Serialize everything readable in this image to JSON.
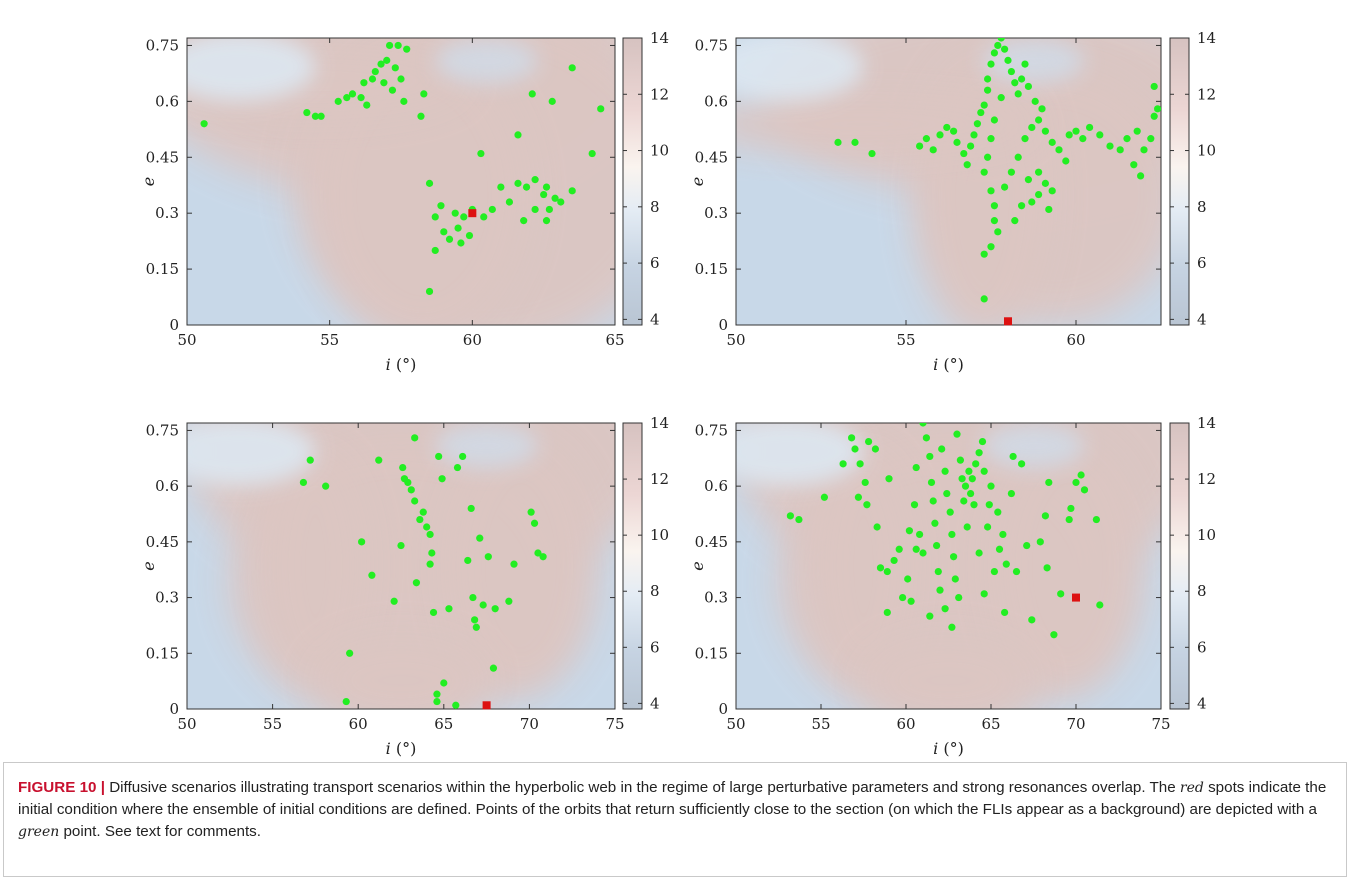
{
  "figure": {
    "colorbar": {
      "ticks": [
        "14",
        "12",
        "10",
        "8",
        "6",
        "4"
      ],
      "range": [
        3.8,
        14
      ],
      "colors": [
        "#b9c5d3",
        "#c6d3e2",
        "#e4ecf4",
        "#faf4ef",
        "#ecd6d4",
        "#d6c2c0"
      ]
    },
    "palette": {
      "green": "#22ee22",
      "red": "#dd1111",
      "bg_low": "#c8d8e8",
      "bg_high": "#dcc6c2"
    }
  },
  "chart_data": [
    {
      "type": "scatter",
      "title": "",
      "xlabel": "i (°)",
      "xlabel_var": "i",
      "xlabel_unit": "(°)",
      "ylabel": "e",
      "xlim": [
        50,
        65
      ],
      "ylim": [
        0,
        0.77
      ],
      "xticks": [
        "50",
        "55",
        "60",
        "65"
      ],
      "yticks": [
        "0",
        "0.15",
        "0.3",
        "0.45",
        "0.6",
        "0.75"
      ],
      "background": "FLI map",
      "initial_condition": [
        60.0,
        0.3
      ],
      "green_points": [
        [
          50.6,
          0.54
        ],
        [
          54.2,
          0.57
        ],
        [
          54.5,
          0.56
        ],
        [
          54.7,
          0.56
        ],
        [
          55.3,
          0.6
        ],
        [
          55.6,
          0.61
        ],
        [
          55.8,
          0.62
        ],
        [
          56.1,
          0.61
        ],
        [
          56.3,
          0.59
        ],
        [
          56.2,
          0.65
        ],
        [
          56.5,
          0.66
        ],
        [
          56.6,
          0.68
        ],
        [
          56.9,
          0.65
        ],
        [
          56.8,
          0.7
        ],
        [
          57.0,
          0.71
        ],
        [
          57.3,
          0.69
        ],
        [
          57.5,
          0.66
        ],
        [
          57.1,
          0.75
        ],
        [
          57.4,
          0.75
        ],
        [
          57.7,
          0.74
        ],
        [
          57.2,
          0.63
        ],
        [
          57.6,
          0.6
        ],
        [
          58.3,
          0.62
        ],
        [
          58.2,
          0.56
        ],
        [
          60.3,
          0.46
        ],
        [
          61.6,
          0.51
        ],
        [
          62.1,
          0.62
        ],
        [
          63.5,
          0.69
        ],
        [
          62.8,
          0.6
        ],
        [
          64.5,
          0.58
        ],
        [
          64.2,
          0.46
        ],
        [
          58.5,
          0.38
        ],
        [
          58.7,
          0.29
        ],
        [
          58.7,
          0.2
        ],
        [
          58.5,
          0.09
        ],
        [
          58.9,
          0.32
        ],
        [
          59.0,
          0.25
        ],
        [
          59.2,
          0.23
        ],
        [
          59.4,
          0.3
        ],
        [
          59.5,
          0.26
        ],
        [
          59.7,
          0.29
        ],
        [
          59.6,
          0.22
        ],
        [
          59.9,
          0.24
        ],
        [
          60.0,
          0.31
        ],
        [
          60.4,
          0.29
        ],
        [
          60.7,
          0.31
        ],
        [
          61.0,
          0.37
        ],
        [
          61.3,
          0.33
        ],
        [
          61.6,
          0.38
        ],
        [
          61.9,
          0.37
        ],
        [
          62.2,
          0.39
        ],
        [
          62.5,
          0.35
        ],
        [
          62.6,
          0.37
        ],
        [
          62.9,
          0.34
        ],
        [
          62.7,
          0.31
        ],
        [
          63.1,
          0.33
        ],
        [
          62.2,
          0.31
        ],
        [
          61.8,
          0.28
        ],
        [
          62.6,
          0.28
        ],
        [
          63.5,
          0.36
        ]
      ]
    },
    {
      "type": "scatter",
      "title": "",
      "xlabel": "i (°)",
      "xlabel_var": "i",
      "xlabel_unit": "(°)",
      "ylabel": "e",
      "xlim": [
        50,
        62.5
      ],
      "ylim": [
        0,
        0.77
      ],
      "xticks": [
        "50",
        "55",
        "60"
      ],
      "yticks": [
        "0",
        "0.15",
        "0.3",
        "0.45",
        "0.6",
        "0.75"
      ],
      "background": "FLI map",
      "initial_condition": [
        58.0,
        0.01
      ],
      "green_points": [
        [
          53.0,
          0.49
        ],
        [
          53.5,
          0.49
        ],
        [
          54.0,
          0.46
        ],
        [
          55.4,
          0.48
        ],
        [
          55.6,
          0.5
        ],
        [
          55.8,
          0.47
        ],
        [
          56.0,
          0.51
        ],
        [
          56.2,
          0.53
        ],
        [
          56.4,
          0.52
        ],
        [
          56.5,
          0.49
        ],
        [
          56.7,
          0.46
        ],
        [
          56.8,
          0.43
        ],
        [
          56.9,
          0.48
        ],
        [
          57.0,
          0.51
        ],
        [
          57.1,
          0.54
        ],
        [
          57.2,
          0.57
        ],
        [
          57.3,
          0.59
        ],
        [
          57.4,
          0.63
        ],
        [
          57.4,
          0.66
        ],
        [
          57.5,
          0.7
        ],
        [
          57.6,
          0.73
        ],
        [
          57.7,
          0.75
        ],
        [
          57.8,
          0.77
        ],
        [
          57.9,
          0.74
        ],
        [
          58.0,
          0.71
        ],
        [
          58.1,
          0.68
        ],
        [
          58.2,
          0.65
        ],
        [
          58.3,
          0.62
        ],
        [
          58.4,
          0.66
        ],
        [
          58.5,
          0.7
        ],
        [
          58.6,
          0.64
        ],
        [
          57.8,
          0.61
        ],
        [
          57.6,
          0.55
        ],
        [
          57.5,
          0.5
        ],
        [
          57.4,
          0.45
        ],
        [
          57.3,
          0.41
        ],
        [
          57.5,
          0.36
        ],
        [
          57.6,
          0.32
        ],
        [
          57.6,
          0.28
        ],
        [
          57.7,
          0.25
        ],
        [
          57.5,
          0.21
        ],
        [
          57.3,
          0.19
        ],
        [
          57.3,
          0.07
        ],
        [
          57.9,
          0.37
        ],
        [
          58.1,
          0.41
        ],
        [
          58.3,
          0.45
        ],
        [
          58.5,
          0.5
        ],
        [
          58.7,
          0.53
        ],
        [
          58.9,
          0.55
        ],
        [
          59.1,
          0.52
        ],
        [
          59.3,
          0.49
        ],
        [
          59.5,
          0.47
        ],
        [
          59.7,
          0.44
        ],
        [
          59.8,
          0.51
        ],
        [
          60.0,
          0.52
        ],
        [
          60.2,
          0.5
        ],
        [
          60.4,
          0.53
        ],
        [
          60.7,
          0.51
        ],
        [
          61.0,
          0.48
        ],
        [
          61.3,
          0.47
        ],
        [
          61.5,
          0.5
        ],
        [
          61.8,
          0.52
        ],
        [
          62.0,
          0.47
        ],
        [
          61.7,
          0.43
        ],
        [
          61.9,
          0.4
        ],
        [
          62.2,
          0.5
        ],
        [
          62.3,
          0.56
        ],
        [
          62.3,
          0.64
        ],
        [
          62.4,
          0.58
        ],
        [
          58.4,
          0.32
        ],
        [
          58.7,
          0.33
        ],
        [
          58.9,
          0.35
        ],
        [
          59.1,
          0.38
        ],
        [
          59.3,
          0.36
        ],
        [
          59.2,
          0.31
        ],
        [
          58.9,
          0.41
        ],
        [
          58.6,
          0.39
        ],
        [
          58.2,
          0.28
        ],
        [
          59.0,
          0.58
        ],
        [
          58.8,
          0.6
        ]
      ]
    },
    {
      "type": "scatter",
      "title": "",
      "xlabel": "i (°)",
      "xlabel_var": "i",
      "xlabel_unit": "(°)",
      "ylabel": "e",
      "xlim": [
        50,
        75
      ],
      "ylim": [
        0,
        0.77
      ],
      "xticks": [
        "50",
        "55",
        "60",
        "65",
        "70",
        "75"
      ],
      "yticks": [
        "0",
        "0.15",
        "0.3",
        "0.45",
        "0.6",
        "0.75"
      ],
      "background": "FLI map",
      "initial_condition": [
        67.5,
        0.01
      ],
      "green_points": [
        [
          56.8,
          0.61
        ],
        [
          57.2,
          0.67
        ],
        [
          58.1,
          0.6
        ],
        [
          60.2,
          0.45
        ],
        [
          60.8,
          0.36
        ],
        [
          61.2,
          0.67
        ],
        [
          62.1,
          0.29
        ],
        [
          62.5,
          0.44
        ],
        [
          62.6,
          0.65
        ],
        [
          62.7,
          0.62
        ],
        [
          62.9,
          0.61
        ],
        [
          63.1,
          0.59
        ],
        [
          63.3,
          0.56
        ],
        [
          63.4,
          0.34
        ],
        [
          63.3,
          0.73
        ],
        [
          63.6,
          0.51
        ],
        [
          63.8,
          0.53
        ],
        [
          64.0,
          0.49
        ],
        [
          64.2,
          0.47
        ],
        [
          64.3,
          0.42
        ],
        [
          64.2,
          0.39
        ],
        [
          64.4,
          0.26
        ],
        [
          64.7,
          0.68
        ],
        [
          64.9,
          0.62
        ],
        [
          65.0,
          0.07
        ],
        [
          65.3,
          0.27
        ],
        [
          65.8,
          0.65
        ],
        [
          66.1,
          0.68
        ],
        [
          66.4,
          0.4
        ],
        [
          66.6,
          0.54
        ],
        [
          66.7,
          0.3
        ],
        [
          66.8,
          0.24
        ],
        [
          66.9,
          0.22
        ],
        [
          67.1,
          0.46
        ],
        [
          67.3,
          0.28
        ],
        [
          67.6,
          0.41
        ],
        [
          67.9,
          0.11
        ],
        [
          68.0,
          0.27
        ],
        [
          68.8,
          0.29
        ],
        [
          69.1,
          0.39
        ],
        [
          70.1,
          0.53
        ],
        [
          70.3,
          0.5
        ],
        [
          70.5,
          0.42
        ],
        [
          70.8,
          0.41
        ],
        [
          64.6,
          0.02
        ],
        [
          59.5,
          0.15
        ],
        [
          59.3,
          0.02
        ],
        [
          65.7,
          0.01
        ],
        [
          64.6,
          0.04
        ]
      ]
    },
    {
      "type": "scatter",
      "title": "",
      "xlabel": "i (°)",
      "xlabel_var": "i",
      "xlabel_unit": "(°)",
      "ylabel": "e",
      "xlim": [
        50,
        75
      ],
      "ylim": [
        0,
        0.77
      ],
      "xticks": [
        "50",
        "55",
        "60",
        "65",
        "70",
        "75"
      ],
      "yticks": [
        "0",
        "0.15",
        "0.3",
        "0.45",
        "0.6",
        "0.75"
      ],
      "background": "FLI map",
      "initial_condition": [
        70.0,
        0.3
      ],
      "green_points": [
        [
          53.2,
          0.52
        ],
        [
          53.7,
          0.51
        ],
        [
          55.2,
          0.57
        ],
        [
          56.3,
          0.66
        ],
        [
          56.8,
          0.73
        ],
        [
          57.0,
          0.7
        ],
        [
          57.3,
          0.66
        ],
        [
          57.2,
          0.57
        ],
        [
          57.6,
          0.61
        ],
        [
          57.7,
          0.55
        ],
        [
          58.3,
          0.49
        ],
        [
          58.5,
          0.38
        ],
        [
          58.9,
          0.37
        ],
        [
          58.9,
          0.26
        ],
        [
          59.3,
          0.4
        ],
        [
          59.6,
          0.43
        ],
        [
          59.8,
          0.3
        ],
        [
          60.1,
          0.35
        ],
        [
          60.2,
          0.48
        ],
        [
          60.3,
          0.29
        ],
        [
          60.5,
          0.55
        ],
        [
          60.6,
          0.43
        ],
        [
          60.8,
          0.47
        ],
        [
          61.0,
          0.42
        ],
        [
          61.0,
          0.77
        ],
        [
          61.2,
          0.73
        ],
        [
          61.4,
          0.68
        ],
        [
          61.5,
          0.61
        ],
        [
          61.6,
          0.56
        ],
        [
          61.7,
          0.5
        ],
        [
          61.8,
          0.44
        ],
        [
          61.9,
          0.37
        ],
        [
          62.0,
          0.32
        ],
        [
          62.1,
          0.7
        ],
        [
          62.3,
          0.64
        ],
        [
          62.4,
          0.58
        ],
        [
          62.6,
          0.53
        ],
        [
          62.7,
          0.47
        ],
        [
          62.8,
          0.41
        ],
        [
          62.9,
          0.35
        ],
        [
          63.0,
          0.74
        ],
        [
          63.2,
          0.67
        ],
        [
          63.3,
          0.62
        ],
        [
          63.4,
          0.56
        ],
        [
          63.5,
          0.6
        ],
        [
          63.7,
          0.64
        ],
        [
          63.8,
          0.58
        ],
        [
          63.9,
          0.62
        ],
        [
          64.0,
          0.55
        ],
        [
          64.1,
          0.66
        ],
        [
          64.3,
          0.69
        ],
        [
          64.5,
          0.72
        ],
        [
          64.6,
          0.64
        ],
        [
          64.8,
          0.49
        ],
        [
          64.9,
          0.55
        ],
        [
          65.0,
          0.6
        ],
        [
          65.2,
          0.37
        ],
        [
          65.4,
          0.53
        ],
        [
          65.7,
          0.47
        ],
        [
          65.9,
          0.39
        ],
        [
          66.2,
          0.58
        ],
        [
          66.3,
          0.68
        ],
        [
          66.5,
          0.37
        ],
        [
          66.8,
          0.66
        ],
        [
          67.1,
          0.44
        ],
        [
          67.4,
          0.24
        ],
        [
          67.9,
          0.45
        ],
        [
          68.2,
          0.52
        ],
        [
          68.4,
          0.61
        ],
        [
          68.7,
          0.2
        ],
        [
          69.1,
          0.31
        ],
        [
          69.6,
          0.51
        ],
        [
          70.0,
          0.61
        ],
        [
          70.5,
          0.59
        ],
        [
          71.2,
          0.51
        ],
        [
          71.4,
          0.28
        ],
        [
          64.3,
          0.42
        ],
        [
          63.6,
          0.49
        ],
        [
          62.3,
          0.27
        ],
        [
          63.1,
          0.3
        ],
        [
          62.7,
          0.22
        ],
        [
          61.4,
          0.25
        ],
        [
          64.6,
          0.31
        ],
        [
          65.5,
          0.43
        ],
        [
          68.3,
          0.38
        ],
        [
          69.7,
          0.54
        ],
        [
          70.3,
          0.63
        ],
        [
          65.8,
          0.26
        ],
        [
          60.6,
          0.65
        ],
        [
          59.0,
          0.62
        ],
        [
          58.2,
          0.7
        ],
        [
          57.8,
          0.72
        ]
      ]
    }
  ],
  "caption": {
    "label": "FIGURE 10 |",
    "t1": " Diffusive scenarios illustrating transport scenarios within the hyperbolic web in the regime of large perturbative parameters and strong resonances overlap. The ",
    "red_word": "red",
    "t2": " spots indicate the initial condition where the ensemble of initial conditions are defined. Points of the orbits that return sufficiently close to the section (on which the FLIs appear as a background) are depicted with a ",
    "green_word": "green",
    "t3": " point. See text for comments."
  }
}
